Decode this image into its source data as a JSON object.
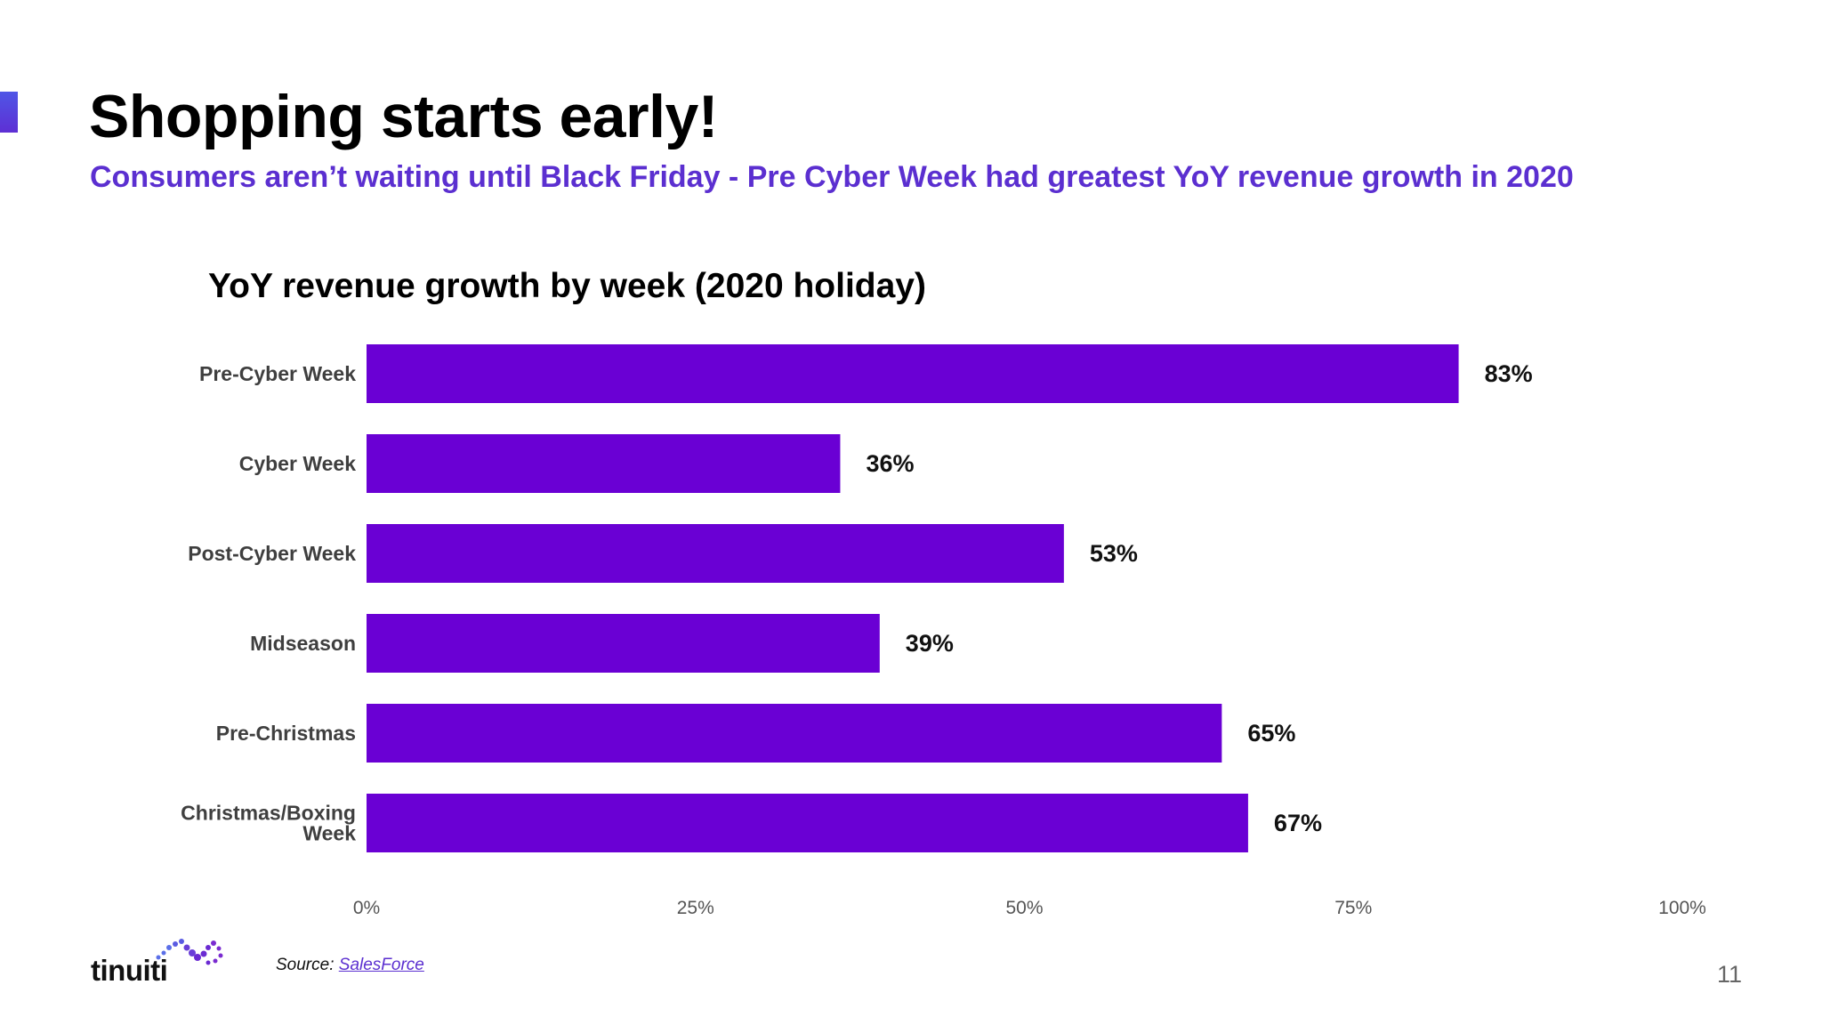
{
  "slide": {
    "title": "Shopping starts early!",
    "subtitle": "Consumers aren’t waiting until Black Friday - Pre Cyber Week had greatest YoY revenue growth in 2020",
    "page_number": "11",
    "accent_color": "#5a3ce0"
  },
  "source": {
    "label": "Source:",
    "link_text": "SalesForce"
  },
  "logo": {
    "text": "tinuiti",
    "icon": "dot-cluster-logo-icon"
  },
  "chart_data": {
    "type": "bar",
    "orientation": "horizontal",
    "title": "YoY revenue growth by week (2020 holiday)",
    "categories": [
      "Pre-Cyber Week",
      "Cyber Week",
      "Post-Cyber Week",
      "Midseason",
      "Pre-Christmas",
      "Christmas/Boxing Week"
    ],
    "category_label_lines": [
      [
        "Pre-Cyber Week"
      ],
      [
        "Cyber Week"
      ],
      [
        "Post-Cyber Week"
      ],
      [
        "Midseason"
      ],
      [
        "Pre-Christmas"
      ],
      [
        "Christmas/Boxing",
        "Week"
      ]
    ],
    "values": [
      83,
      36,
      53,
      39,
      65,
      67
    ],
    "value_labels": [
      "83%",
      "36%",
      "53%",
      "39%",
      "65%",
      "67%"
    ],
    "xlim": [
      0,
      100
    ],
    "x_ticks": [
      0,
      25,
      50,
      75,
      100
    ],
    "x_tick_labels": [
      "0%",
      "25%",
      "50%",
      "75%",
      "100%"
    ],
    "bar_color": "#6a00d4",
    "grid": false,
    "legend": "none"
  }
}
